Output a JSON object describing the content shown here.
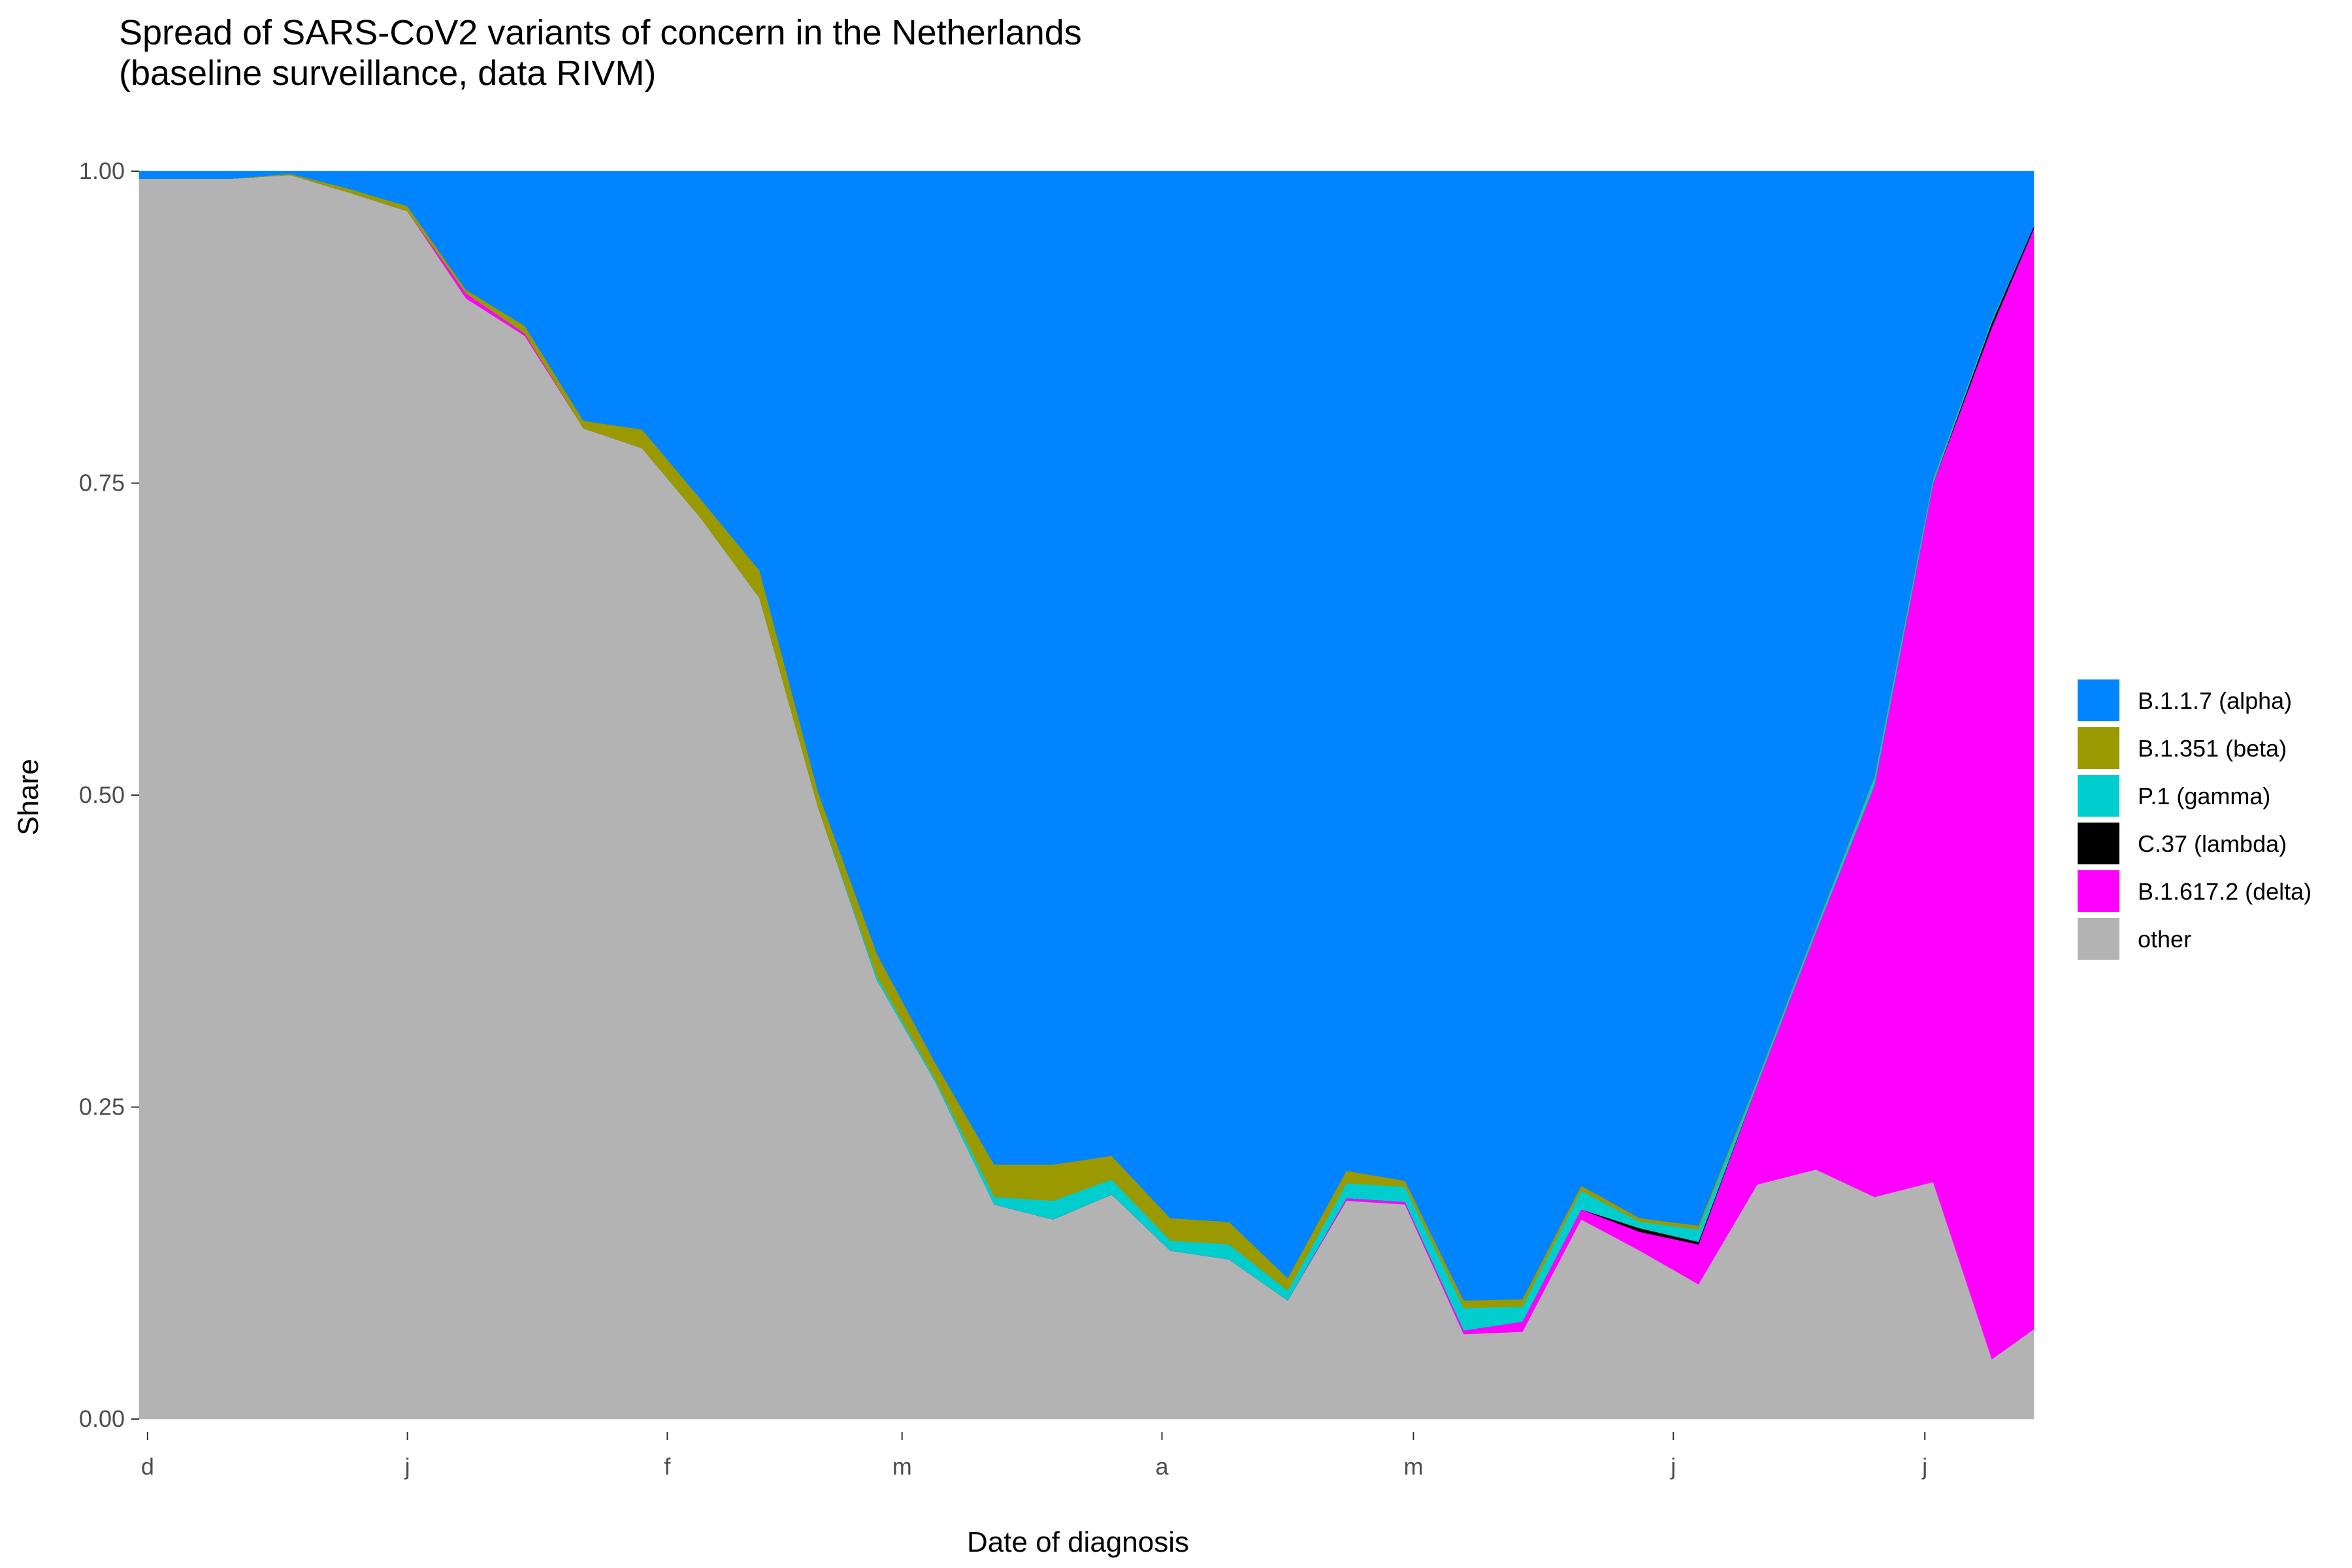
{
  "chart_data": {
    "type": "area",
    "stacked": true,
    "normalized": true,
    "title": "Spread of SARS-CoV2 variants of concern in the Netherlands",
    "subtitle": "(baseline surveillance, data RIVM)",
    "xlabel": "Date of diagnosis",
    "ylabel": "Share",
    "ylim": [
      0,
      1
    ],
    "y_ticks": [
      "0.00",
      "0.25",
      "0.50",
      "0.75",
      "1.00"
    ],
    "x_range": [
      "2020-11-30",
      "2021-07-14"
    ],
    "x_ticks": [
      {
        "date": "2020-12-01",
        "label": "d"
      },
      {
        "date": "2021-01-01",
        "label": "j"
      },
      {
        "date": "2021-02-01",
        "label": "f"
      },
      {
        "date": "2021-03-01",
        "label": "m"
      },
      {
        "date": "2021-04-01",
        "label": "a"
      },
      {
        "date": "2021-05-01",
        "label": "m"
      },
      {
        "date": "2021-06-01",
        "label": "j"
      },
      {
        "date": "2021-07-01",
        "label": "j"
      }
    ],
    "grid": false,
    "legend_position": "right",
    "dates": [
      "2020-12-04",
      "2020-12-11",
      "2020-12-18",
      "2020-12-25",
      "2021-01-01",
      "2021-01-08",
      "2021-01-15",
      "2021-01-22",
      "2021-01-29",
      "2021-02-05",
      "2021-02-12",
      "2021-02-19",
      "2021-02-26",
      "2021-03-05",
      "2021-03-12",
      "2021-03-19",
      "2021-03-26",
      "2021-04-02",
      "2021-04-09",
      "2021-04-16",
      "2021-04-23",
      "2021-04-30",
      "2021-05-07",
      "2021-05-14",
      "2021-05-21",
      "2021-05-28",
      "2021-06-04",
      "2021-06-11",
      "2021-06-18",
      "2021-06-25",
      "2021-07-02",
      "2021-07-09",
      "2021-07-14"
    ],
    "series": [
      {
        "name": "other",
        "color": "#b3b3b3",
        "values": [
          0.994,
          0.994,
          0.997,
          0.983,
          0.968,
          0.898,
          0.868,
          0.794,
          0.778,
          0.722,
          0.658,
          0.49,
          0.352,
          0.27,
          0.172,
          0.16,
          0.18,
          0.135,
          0.128,
          0.095,
          0.175,
          0.172,
          0.068,
          0.07,
          0.16,
          0.135,
          0.108,
          0.188,
          0.2,
          0.178,
          0.19,
          0.048,
          0.072
        ]
      },
      {
        "name": "B.1.617.2 (delta)",
        "color": "#ff00ff",
        "values": [
          0,
          0,
          0,
          0,
          0,
          0.004,
          0.002,
          0,
          0,
          0,
          0,
          0,
          0,
          0,
          0,
          0,
          0,
          0,
          0,
          0,
          0.002,
          0.002,
          0.003,
          0.008,
          0.008,
          0.015,
          0.032,
          0.08,
          0.19,
          0.33,
          0.56,
          0.827,
          0.882
        ]
      },
      {
        "name": "C.37 (lambda)",
        "color": "#000000",
        "values": [
          0,
          0,
          0,
          0,
          0,
          0,
          0,
          0,
          0,
          0,
          0,
          0,
          0,
          0,
          0,
          0,
          0,
          0,
          0,
          0,
          0,
          0,
          0,
          0,
          0,
          0.003,
          0.002,
          0,
          0,
          0,
          0,
          0.004,
          0.002
        ]
      },
      {
        "name": "P.1 (gamma)",
        "color": "#00cdcd",
        "values": [
          0,
          0,
          0,
          0,
          0,
          0,
          0,
          0,
          0,
          0,
          0,
          0,
          0.003,
          0.002,
          0.006,
          0.015,
          0.012,
          0.008,
          0.012,
          0.008,
          0.012,
          0.012,
          0.018,
          0.012,
          0.015,
          0.005,
          0.01,
          0.003,
          0.003,
          0.006,
          0.003,
          0.002,
          0
        ]
      },
      {
        "name": "B.1.351 (beta)",
        "color": "#9a9a00",
        "values": [
          0,
          0,
          0.001,
          0.003,
          0.004,
          0.003,
          0.006,
          0.006,
          0.015,
          0.015,
          0.022,
          0.012,
          0.018,
          0.013,
          0.026,
          0.029,
          0.019,
          0.018,
          0.018,
          0.01,
          0.01,
          0.005,
          0.006,
          0.006,
          0.004,
          0.003,
          0.003,
          0.001,
          0.001,
          0.001,
          0.001,
          0,
          0
        ]
      },
      {
        "name": "B.1.1.7 (alpha)",
        "color": "#0084ff",
        "values": [
          0.006,
          0.006,
          0.002,
          0.014,
          0.028,
          0.095,
          0.124,
          0.2,
          0.207,
          0.263,
          0.32,
          0.498,
          0.627,
          0.715,
          0.796,
          0.796,
          0.789,
          0.839,
          0.842,
          0.887,
          0.801,
          0.809,
          0.905,
          0.904,
          0.813,
          0.839,
          0.845,
          0.728,
          0.606,
          0.485,
          0.246,
          0.119,
          0.044
        ]
      }
    ],
    "legend_order": [
      "B.1.1.7 (alpha)",
      "B.1.351 (beta)",
      "P.1 (gamma)",
      "C.37 (lambda)",
      "B.1.617.2 (delta)",
      "other"
    ]
  }
}
